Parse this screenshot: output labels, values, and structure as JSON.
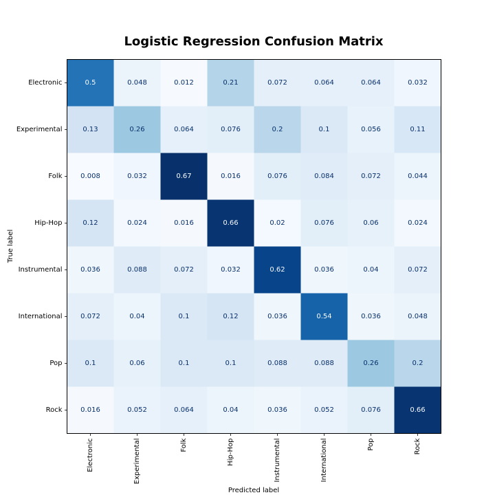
{
  "chart_data": {
    "type": "heatmap",
    "title": "Logistic Regression Confusion Matrix",
    "xlabel": "Predicted label",
    "ylabel": "True label",
    "x_categories": [
      "Electronic",
      "Experimental",
      "Folk",
      "Hip-Hop",
      "Instrumental",
      "International",
      "Pop",
      "Rock"
    ],
    "y_categories": [
      "Electronic",
      "Experimental",
      "Folk",
      "Hip-Hop",
      "Instrumental",
      "International",
      "Pop",
      "Rock"
    ],
    "values": [
      [
        0.5,
        0.048,
        0.012,
        0.21,
        0.072,
        0.064,
        0.064,
        0.032
      ],
      [
        0.13,
        0.26,
        0.064,
        0.076,
        0.2,
        0.1,
        0.056,
        0.11
      ],
      [
        0.008,
        0.032,
        0.67,
        0.016,
        0.076,
        0.084,
        0.072,
        0.044
      ],
      [
        0.12,
        0.024,
        0.016,
        0.66,
        0.02,
        0.076,
        0.06,
        0.024
      ],
      [
        0.036,
        0.088,
        0.072,
        0.032,
        0.62,
        0.036,
        0.04,
        0.072
      ],
      [
        0.072,
        0.04,
        0.1,
        0.12,
        0.036,
        0.54,
        0.036,
        0.048
      ],
      [
        0.1,
        0.06,
        0.1,
        0.1,
        0.088,
        0.088,
        0.26,
        0.2
      ],
      [
        0.016,
        0.052,
        0.064,
        0.04,
        0.036,
        0.052,
        0.076,
        0.66
      ]
    ],
    "colormap": "Blues",
    "value_range": [
      0.008,
      0.67
    ],
    "grid": false,
    "colorbar": false
  }
}
